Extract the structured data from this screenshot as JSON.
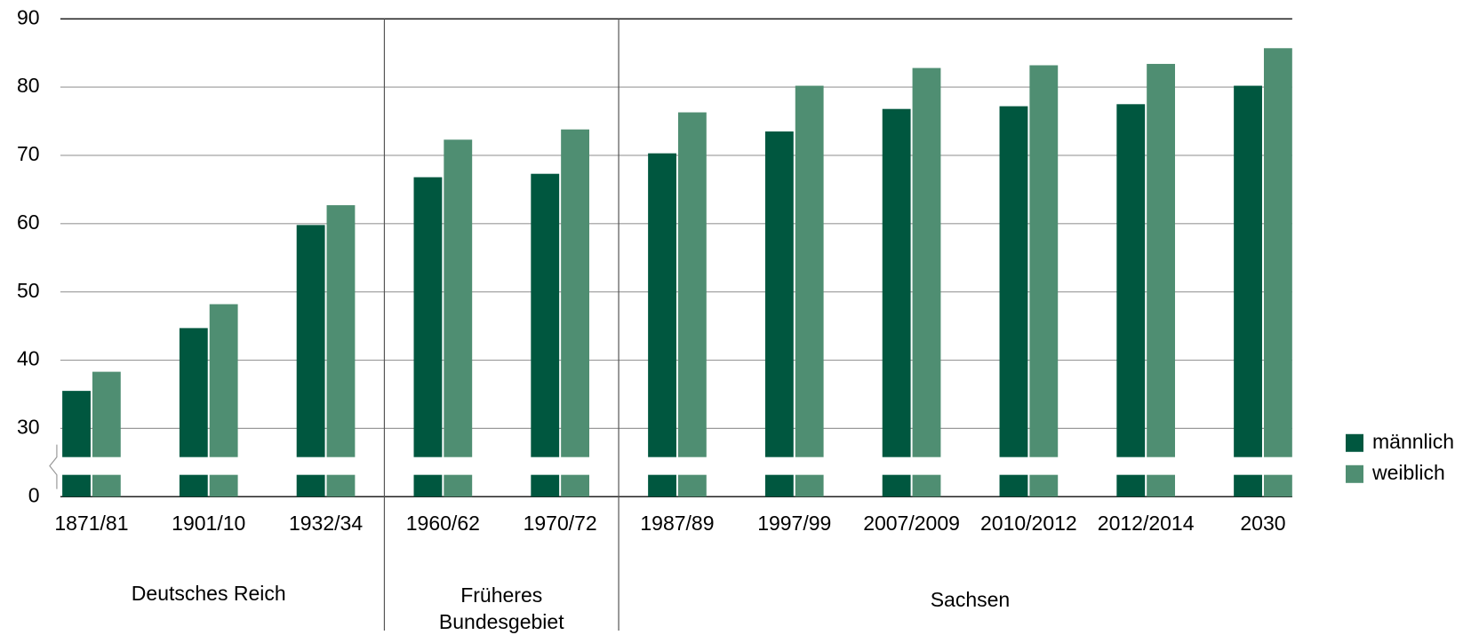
{
  "chart_data": {
    "type": "bar",
    "groups": [
      {
        "label": "Deutsches Reich",
        "categories": [
          "1871/81",
          "1901/10",
          "1932/34"
        ]
      },
      {
        "label": "Früheres Bundesgebiet",
        "categories": [
          "1960/62",
          "1970/72"
        ]
      },
      {
        "label": "Sachsen",
        "categories": [
          "1987/89",
          "1997/99",
          "2007/2009",
          "2010/2012",
          "2012/2014",
          "2030"
        ]
      }
    ],
    "series": [
      {
        "name": "männlich",
        "color": "#00573f",
        "values": [
          35.5,
          44.7,
          59.8,
          66.8,
          67.3,
          70.3,
          73.5,
          76.8,
          77.2,
          77.5,
          80.2
        ]
      },
      {
        "name": "weiblich",
        "color": "#4f8e72",
        "values": [
          38.3,
          48.2,
          62.7,
          72.3,
          73.8,
          76.3,
          80.2,
          82.8,
          83.2,
          83.4,
          85.7
        ]
      }
    ],
    "ylim": [
      0,
      90
    ],
    "yticks": [
      0,
      30,
      40,
      50,
      60,
      70,
      80,
      90
    ],
    "axis_break": true,
    "grid": true,
    "legend": "right"
  }
}
